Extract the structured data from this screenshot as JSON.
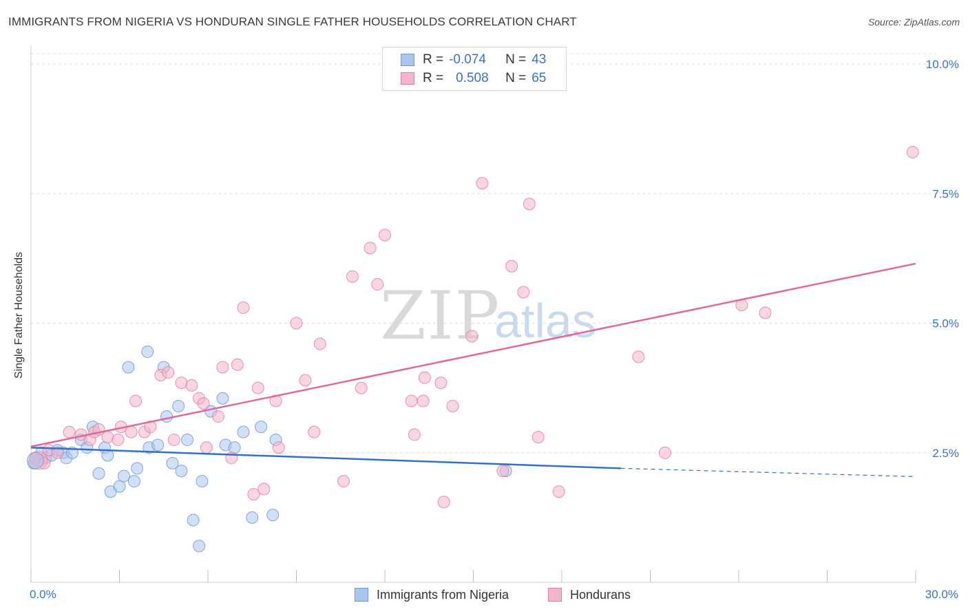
{
  "header": {
    "title": "IMMIGRANTS FROM NIGERIA VS HONDURAN SINGLE FATHER HOUSEHOLDS CORRELATION CHART",
    "source": "Source: ZipAtlas.com"
  },
  "watermark": {
    "zip": "ZIP",
    "atlas": "atlas"
  },
  "legend": {
    "rows": [
      {
        "r_label": "R =",
        "r_value": "-0.074",
        "n_label": "N =",
        "n_value": "43",
        "color": "#a9c6ee"
      },
      {
        "r_label": "R =",
        "r_value": "0.508",
        "n_label": "N =",
        "n_value": "65",
        "color": "#f5b5c9"
      }
    ]
  },
  "bottom_legend": {
    "nigeria": "Immigrants from Nigeria",
    "hondurans": "Hondurans"
  },
  "colors": {
    "nigeria_fill": "#a9c6ee",
    "nigeria_stroke": "#6e98d6",
    "nigeria_line": "#2f72cc",
    "hondurans_fill": "#f5b5c9",
    "hondurans_stroke": "#e47fa0",
    "hondurans_line": "#e2679a",
    "grid": "#dcdcdc",
    "tick_text": "#3a72c4"
  },
  "chart_data": {
    "type": "scatter",
    "xlabel": "",
    "ylabel": "Single Father Households",
    "xlim": [
      0,
      30
    ],
    "ylim": [
      0,
      10.2
    ],
    "x_tick_labels": [
      {
        "value": 0,
        "label": "0.0%"
      },
      {
        "value": 30,
        "label": "30.0%"
      }
    ],
    "y_tick_labels": [
      {
        "value": 2.5,
        "label": "2.5%"
      },
      {
        "value": 5.0,
        "label": "5.0%"
      },
      {
        "value": 7.5,
        "label": "7.5%"
      },
      {
        "value": 10.0,
        "label": "10.0%"
      }
    ],
    "grid": true,
    "legend_position": "top-center",
    "series": [
      {
        "name": "Immigrants from Nigeria",
        "points": [
          [
            0.2,
            2.35
          ],
          [
            0.35,
            2.5
          ],
          [
            0.5,
            2.4
          ],
          [
            0.7,
            2.45
          ],
          [
            0.9,
            2.55
          ],
          [
            1.1,
            2.5
          ],
          [
            1.2,
            2.4
          ],
          [
            1.4,
            2.5
          ],
          [
            1.7,
            2.75
          ],
          [
            1.9,
            2.6
          ],
          [
            2.1,
            3.0
          ],
          [
            2.3,
            2.1
          ],
          [
            2.5,
            2.6
          ],
          [
            2.6,
            2.45
          ],
          [
            2.7,
            1.75
          ],
          [
            3.0,
            1.85
          ],
          [
            3.15,
            2.05
          ],
          [
            3.5,
            1.95
          ],
          [
            3.6,
            2.2
          ],
          [
            3.3,
            4.15
          ],
          [
            3.95,
            4.45
          ],
          [
            4.0,
            2.6
          ],
          [
            4.3,
            2.65
          ],
          [
            4.5,
            4.15
          ],
          [
            4.6,
            3.2
          ],
          [
            4.8,
            2.3
          ],
          [
            5.0,
            3.4
          ],
          [
            5.1,
            2.15
          ],
          [
            5.3,
            2.75
          ],
          [
            5.5,
            1.2
          ],
          [
            5.7,
            0.7
          ],
          [
            5.8,
            1.95
          ],
          [
            6.1,
            3.3
          ],
          [
            6.5,
            3.55
          ],
          [
            6.6,
            2.65
          ],
          [
            6.9,
            2.6
          ],
          [
            7.2,
            2.9
          ],
          [
            7.5,
            1.25
          ],
          [
            7.8,
            3.0
          ],
          [
            8.2,
            1.3
          ],
          [
            8.3,
            2.75
          ],
          [
            16.1,
            2.15
          ],
          [
            0.1,
            2.3
          ]
        ]
      },
      {
        "name": "Hondurans",
        "points": [
          [
            0.15,
            2.4
          ],
          [
            0.3,
            2.35
          ],
          [
            0.45,
            2.3
          ],
          [
            0.6,
            2.55
          ],
          [
            0.9,
            2.5
          ],
          [
            1.3,
            2.9
          ],
          [
            1.7,
            2.85
          ],
          [
            2.0,
            2.75
          ],
          [
            2.15,
            2.9
          ],
          [
            2.3,
            2.95
          ],
          [
            2.6,
            2.8
          ],
          [
            2.95,
            2.75
          ],
          [
            3.05,
            3.0
          ],
          [
            3.4,
            2.9
          ],
          [
            3.55,
            3.5
          ],
          [
            3.85,
            2.9
          ],
          [
            4.05,
            3.0
          ],
          [
            4.4,
            4.0
          ],
          [
            4.65,
            4.05
          ],
          [
            4.85,
            2.75
          ],
          [
            5.1,
            3.85
          ],
          [
            5.45,
            3.8
          ],
          [
            5.7,
            3.55
          ],
          [
            5.85,
            3.45
          ],
          [
            5.95,
            2.6
          ],
          [
            6.35,
            3.2
          ],
          [
            6.5,
            4.15
          ],
          [
            6.8,
            2.4
          ],
          [
            7.0,
            4.2
          ],
          [
            7.2,
            5.3
          ],
          [
            7.55,
            1.7
          ],
          [
            7.7,
            3.75
          ],
          [
            7.9,
            1.8
          ],
          [
            8.3,
            3.5
          ],
          [
            8.4,
            2.6
          ],
          [
            9.0,
            5.0
          ],
          [
            9.3,
            3.9
          ],
          [
            9.6,
            2.9
          ],
          [
            9.8,
            4.6
          ],
          [
            10.6,
            1.95
          ],
          [
            10.9,
            5.9
          ],
          [
            11.2,
            3.75
          ],
          [
            11.5,
            6.45
          ],
          [
            11.75,
            5.75
          ],
          [
            12.0,
            6.7
          ],
          [
            12.9,
            3.5
          ],
          [
            13.0,
            2.85
          ],
          [
            13.3,
            3.5
          ],
          [
            13.35,
            3.95
          ],
          [
            13.9,
            3.85
          ],
          [
            14.0,
            1.55
          ],
          [
            14.3,
            3.4
          ],
          [
            14.95,
            4.75
          ],
          [
            15.3,
            7.7
          ],
          [
            16.0,
            2.15
          ],
          [
            16.3,
            6.1
          ],
          [
            16.7,
            5.6
          ],
          [
            16.9,
            7.3
          ],
          [
            17.2,
            2.8
          ],
          [
            17.9,
            1.75
          ],
          [
            20.6,
            4.35
          ],
          [
            21.5,
            2.5
          ],
          [
            24.1,
            5.35
          ],
          [
            24.9,
            5.2
          ],
          [
            29.9,
            8.3
          ]
        ]
      }
    ],
    "trendlines": [
      {
        "series": "Immigrants from Nigeria",
        "x": [
          0,
          20
        ],
        "y": [
          2.6,
          2.2
        ],
        "dashed_extension_to_x": 30,
        "dashed_extension_y": 2.04
      },
      {
        "series": "Hondurans",
        "x": [
          0,
          30
        ],
        "y": [
          2.62,
          6.15
        ]
      }
    ]
  }
}
